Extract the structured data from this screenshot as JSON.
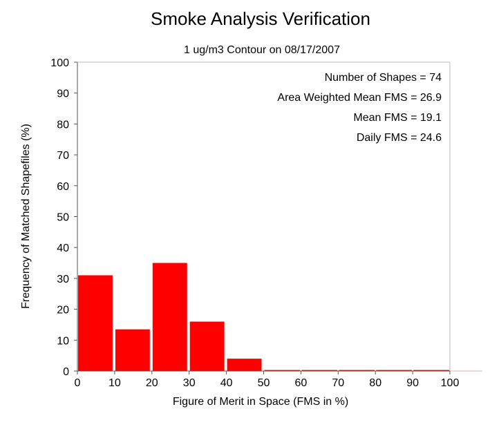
{
  "chart_data": {
    "type": "bar",
    "title": "Smoke Analysis Verification",
    "subtitle": "1 ug/m3 Contour on 08/17/2007",
    "xlabel": "Figure of Merit in Space (FMS in %)",
    "ylabel": "Frequency of Matched Shapefiles (%)",
    "xlim": [
      0,
      100
    ],
    "ylim": [
      0,
      100
    ],
    "x_ticks": [
      0,
      10,
      20,
      30,
      40,
      50,
      60,
      70,
      80,
      90,
      100
    ],
    "y_ticks": [
      0,
      10,
      20,
      30,
      40,
      50,
      60,
      70,
      80,
      90,
      100
    ],
    "bin_width": 10,
    "bins": [
      {
        "from": 0,
        "to": 10,
        "value": 31
      },
      {
        "from": 10,
        "to": 20,
        "value": 13.5
      },
      {
        "from": 20,
        "to": 30,
        "value": 35
      },
      {
        "from": 30,
        "to": 40,
        "value": 16
      },
      {
        "from": 40,
        "to": 50,
        "value": 4
      },
      {
        "from": 50,
        "to": 60,
        "value": 0
      },
      {
        "from": 60,
        "to": 70,
        "value": 0
      },
      {
        "from": 70,
        "to": 80,
        "value": 0
      },
      {
        "from": 80,
        "to": 90,
        "value": 0
      },
      {
        "from": 90,
        "to": 100,
        "value": 0
      }
    ],
    "bar_color": "#ff0000",
    "annotations": [
      "Number of Shapes = 74",
      "Area Weighted Mean FMS = 26.9",
      "Mean FMS = 19.1",
      "Daily FMS = 24.6"
    ],
    "grid": false,
    "legend": "none"
  }
}
